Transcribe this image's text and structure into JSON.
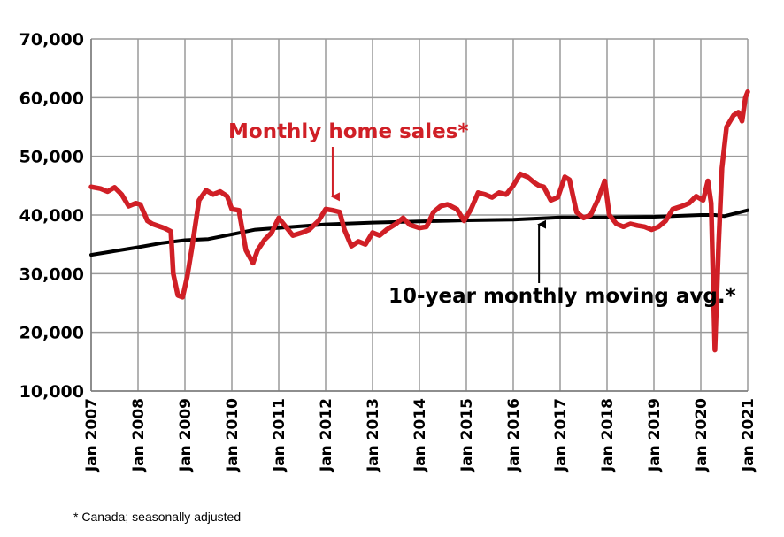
{
  "chart_data": {
    "type": "line",
    "title": "",
    "xlabel": "",
    "ylabel": "",
    "ylim": [
      10000,
      70000
    ],
    "yticks": [
      10000,
      20000,
      30000,
      40000,
      50000,
      60000,
      70000
    ],
    "ytick_labels": [
      "10,000",
      "20,000",
      "30,000",
      "40,000",
      "50,000",
      "60,000",
      "70,000"
    ],
    "xlim": [
      2007.0,
      2021.0
    ],
    "xticks": [
      2007,
      2008,
      2009,
      2010,
      2011,
      2012,
      2013,
      2014,
      2015,
      2016,
      2017,
      2018,
      2019,
      2020,
      2021
    ],
    "xtick_labels": [
      "Jan 2007",
      "Jan 2008",
      "Jan 2009",
      "Jan 2010",
      "Jan 2011",
      "Jan 2012",
      "Jan 2013",
      "Jan 2014",
      "Jan 2015",
      "Jan 2016",
      "Jan 2017",
      "Jan 2018",
      "Jan 2019",
      "Jan 2020",
      "Jan 2021"
    ],
    "grid": true,
    "series": [
      {
        "name": "Monthly home sales*",
        "color": "#d01f26",
        "x": [
          2007.0,
          2007.2,
          2007.35,
          2007.5,
          2007.65,
          2007.8,
          2007.95,
          2008.05,
          2008.2,
          2008.3,
          2008.4,
          2008.55,
          2008.7,
          2008.75,
          2008.85,
          2008.95,
          2009.05,
          2009.15,
          2009.3,
          2009.45,
          2009.6,
          2009.75,
          2009.9,
          2010.0,
          2010.15,
          2010.3,
          2010.45,
          2010.55,
          2010.7,
          2010.85,
          2011.0,
          2011.15,
          2011.3,
          2011.5,
          2011.65,
          2011.85,
          2012.0,
          2012.15,
          2012.3,
          2012.4,
          2012.55,
          2012.7,
          2012.85,
          2013.0,
          2013.15,
          2013.3,
          2013.5,
          2013.65,
          2013.8,
          2014.0,
          2014.15,
          2014.3,
          2014.45,
          2014.6,
          2014.8,
          2014.95,
          2015.1,
          2015.25,
          2015.4,
          2015.55,
          2015.7,
          2015.85,
          2016.0,
          2016.15,
          2016.3,
          2016.45,
          2016.55,
          2016.65,
          2016.8,
          2016.95,
          2017.1,
          2017.2,
          2017.35,
          2017.5,
          2017.65,
          2017.8,
          2017.95,
          2018.05,
          2018.2,
          2018.35,
          2018.5,
          2018.65,
          2018.8,
          2018.95,
          2019.1,
          2019.25,
          2019.4,
          2019.6,
          2019.75,
          2019.9,
          2020.05,
          2020.15,
          2020.22,
          2020.3,
          2020.38,
          2020.45,
          2020.55,
          2020.7,
          2020.8,
          2020.88,
          2020.95,
          2021.0
        ],
        "values": [
          44800,
          44500,
          44000,
          44700,
          43500,
          41500,
          42000,
          41800,
          39000,
          38500,
          38200,
          37800,
          37200,
          30000,
          26300,
          26000,
          29500,
          34500,
          42500,
          44200,
          43500,
          44000,
          43200,
          41000,
          40800,
          34000,
          31800,
          34000,
          35800,
          37000,
          39500,
          38000,
          36500,
          37000,
          37500,
          39000,
          41000,
          40800,
          40500,
          37500,
          34700,
          35500,
          35000,
          37000,
          36500,
          37500,
          38500,
          39500,
          38300,
          37800,
          38000,
          40500,
          41500,
          41800,
          41000,
          39000,
          41000,
          43800,
          43500,
          43000,
          43800,
          43500,
          45000,
          47000,
          46500,
          45500,
          45000,
          44800,
          42500,
          43000,
          46500,
          46000,
          40500,
          39500,
          40000,
          42500,
          45800,
          40000,
          38500,
          38000,
          38500,
          38200,
          38000,
          37500,
          38000,
          39000,
          41000,
          41500,
          42000,
          43200,
          42500,
          45800,
          42000,
          17000,
          35000,
          48000,
          55000,
          57000,
          57500,
          56000,
          60000,
          61000
        ]
      },
      {
        "name": "10-year monthly moving avg.*",
        "color": "#000000",
        "x": [
          2007.0,
          2008.0,
          2008.5,
          2009.0,
          2009.5,
          2010.0,
          2010.5,
          2011.0,
          2012.0,
          2013.0,
          2014.0,
          2015.0,
          2016.0,
          2017.0,
          2018.0,
          2019.0,
          2020.0,
          2020.3,
          2020.5,
          2021.0
        ],
        "values": [
          33200,
          34500,
          35200,
          35700,
          35900,
          36700,
          37500,
          37800,
          38400,
          38700,
          38900,
          39100,
          39200,
          39600,
          39600,
          39700,
          40000,
          40000,
          39800,
          40800
        ]
      }
    ],
    "annotations": [
      {
        "text": "Monthly home sales*",
        "color": "#d01f26",
        "arrow_to": [
          2012.15,
          41000
        ]
      },
      {
        "text": "10-year monthly moving avg.*",
        "color": "#000000",
        "arrow_to": [
          2016.55,
          39300
        ]
      }
    ],
    "footnote": "* Canada; seasonally adjusted"
  }
}
